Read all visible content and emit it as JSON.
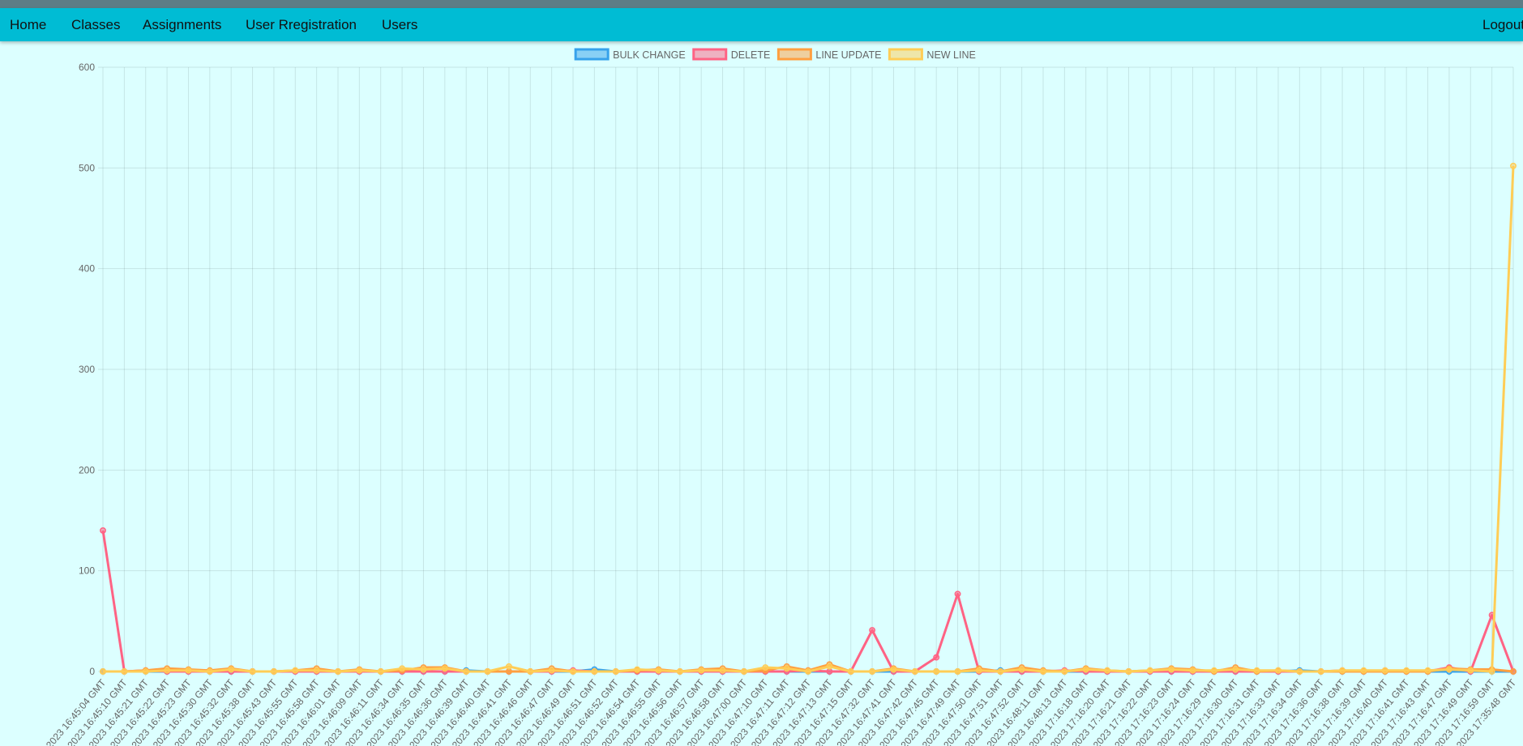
{
  "nav": {
    "items": [
      {
        "label": "Home",
        "name": "nav-home"
      },
      {
        "label": "Classes",
        "name": "nav-classes"
      },
      {
        "label": "Assignments",
        "name": "nav-assignments"
      },
      {
        "label": "User Rregistration",
        "name": "nav-user-registration"
      },
      {
        "label": "Users",
        "name": "nav-users"
      }
    ],
    "logout_label": "Logout"
  },
  "colors": {
    "navbar": "#00bcd4",
    "background": "#dcffff",
    "bulk_change": "#36a2eb",
    "delete": "#ff6384",
    "line_update": "#ff9f40",
    "new_line": "#ffcd56"
  },
  "chart_data": {
    "type": "line",
    "title": "",
    "xlabel": "",
    "ylabel": "",
    "ylim": [
      0,
      600
    ],
    "yticks": [
      0,
      100,
      200,
      300,
      400,
      500,
      600
    ],
    "grid": true,
    "legend_position": "top",
    "x_tick_labels": [
      "2023 16:45:04 GMT",
      "2023 16:45:10 GMT",
      "2023 16:45:21 GMT",
      "2023 16:45:22 GMT",
      "2023 16:45:23 GMT",
      "2023 16:45:30 GMT",
      "2023 16:45:32 GMT",
      "2023 16:45:38 GMT",
      "2023 16:45:43 GMT",
      "2023 16:45:55 GMT",
      "2023 16:45:58 GMT",
      "2023 16:46:01 GMT",
      "2023 16:46:09 GMT",
      "2023 16:46:11 GMT",
      "2023 16:46:34 GMT",
      "2023 16:46:35 GMT",
      "2023 16:46:36 GMT",
      "2023 16:46:39 GMT",
      "2023 16:46:40 GMT",
      "2023 16:46:41 GMT",
      "2023 16:46:46 GMT",
      "2023 16:46:47 GMT",
      "2023 16:46:49 GMT",
      "2023 16:46:51 GMT",
      "2023 16:46:52 GMT",
      "2023 16:46:54 GMT",
      "2023 16:46:55 GMT",
      "2023 16:46:56 GMT",
      "2023 16:46:57 GMT",
      "2023 16:46:58 GMT",
      "2023 16:47:00 GMT",
      "2023 16:47:10 GMT",
      "2023 16:47:11 GMT",
      "2023 16:47:12 GMT",
      "2023 16:47:13 GMT",
      "2023 16:47:15 GMT",
      "2023 16:47:32 GMT",
      "2023 16:47:41 GMT",
      "2023 16:47:42 GMT",
      "2023 16:47:45 GMT",
      "2023 16:47:49 GMT",
      "2023 16:47:50 GMT",
      "2023 16:47:51 GMT",
      "2023 16:47:52 GMT",
      "2023 16:48:11 GMT",
      "2023 16:48:13 GMT",
      "2023 17:16:18 GMT",
      "2023 17:16:20 GMT",
      "2023 17:16:21 GMT",
      "2023 17:16:22 GMT",
      "2023 17:16:23 GMT",
      "2023 17:16:24 GMT",
      "2023 17:16:29 GMT",
      "2023 17:16:30 GMT",
      "2023 17:16:31 GMT",
      "2023 17:16:33 GMT",
      "2023 17:16:34 GMT",
      "2023 17:16:36 GMT",
      "2023 17:16:38 GMT",
      "2023 17:16:39 GMT",
      "2023 17:16:40 GMT",
      "2023 17:16:41 GMT",
      "2023 17:16:43 GMT",
      "2023 17:16:47 GMT",
      "2023 17:16:49 GMT",
      "2023 17:16:59 GMT",
      "2023 17:35:48 GMT"
    ],
    "series": [
      {
        "name": "BULK CHANGE",
        "color": "#36a2eb",
        "values": [
          0,
          0,
          0,
          0,
          0,
          0,
          0,
          0,
          0,
          0,
          0,
          0,
          0,
          0,
          0,
          0,
          0,
          1,
          0,
          0,
          0,
          0,
          0,
          2,
          0,
          0,
          0,
          0,
          0,
          0,
          0,
          0,
          0,
          0,
          0,
          0,
          0,
          0,
          0,
          0,
          0,
          0,
          1,
          0,
          0,
          0,
          0,
          0,
          0,
          0,
          0,
          0,
          0,
          0,
          0,
          0,
          1,
          0,
          0,
          0,
          0,
          0,
          0,
          0,
          0,
          0,
          0
        ]
      },
      {
        "name": "DELETE",
        "color": "#ff6384",
        "values": [
          140,
          0,
          1,
          0,
          0,
          0,
          0,
          0,
          0,
          0,
          0,
          0,
          0,
          0,
          0,
          0,
          0,
          0,
          0,
          0,
          0,
          0,
          1,
          0,
          0,
          0,
          0,
          0,
          0,
          0,
          0,
          0,
          0,
          1,
          0,
          0,
          41,
          0,
          0,
          14,
          77,
          0,
          0,
          0,
          0,
          1,
          0,
          0,
          0,
          0,
          0,
          0,
          0,
          0,
          0,
          0,
          0,
          0,
          1,
          0,
          1,
          0,
          0,
          4,
          0,
          56,
          0
        ]
      },
      {
        "name": "LINE UPDATE",
        "color": "#ff9f40",
        "values": [
          0,
          0,
          1,
          3,
          2,
          1,
          3,
          0,
          0,
          1,
          3,
          0,
          2,
          0,
          1,
          4,
          4,
          0,
          0,
          0,
          0,
          3,
          0,
          0,
          0,
          1,
          2,
          0,
          2,
          3,
          0,
          1,
          5,
          1,
          7,
          0,
          0,
          3,
          0,
          0,
          0,
          3,
          0,
          4,
          1,
          0,
          3,
          1,
          0,
          1,
          3,
          2,
          0,
          4,
          0,
          1,
          0,
          0,
          0,
          0,
          0,
          0,
          0,
          3,
          2,
          2,
          0
        ]
      },
      {
        "name": "NEW LINE",
        "color": "#ffcd56",
        "values": [
          0,
          0,
          0,
          1,
          1,
          0,
          2,
          0,
          0,
          1,
          1,
          0,
          1,
          0,
          3,
          2,
          3,
          0,
          0,
          5,
          0,
          1,
          0,
          0,
          0,
          2,
          1,
          0,
          1,
          1,
          0,
          4,
          3,
          0,
          5,
          0,
          0,
          2,
          0,
          0,
          0,
          1,
          0,
          2,
          0,
          0,
          2,
          1,
          0,
          1,
          2,
          1,
          1,
          2,
          1,
          1,
          0,
          0,
          1,
          1,
          1,
          1,
          1,
          2,
          1,
          0,
          502
        ]
      }
    ]
  }
}
